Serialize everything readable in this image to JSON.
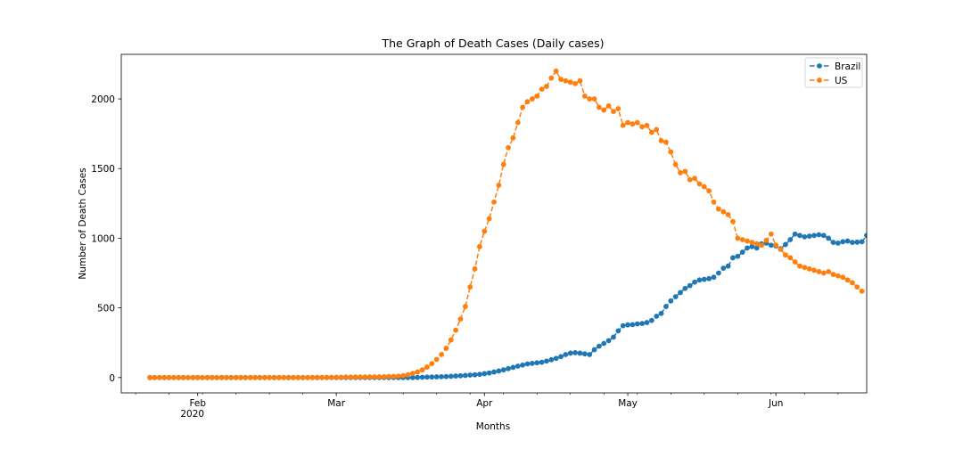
{
  "chart_data": {
    "type": "line",
    "title": "The Graph of Death Cases (Daily cases)",
    "xlabel": "Months",
    "ylabel": "Number of Death Cases",
    "x_start": "2020-01-22",
    "x_end": "2020-06-20",
    "xlim": [
      "2020-01-16",
      "2020-06-20"
    ],
    "ylim": [
      -110,
      2320
    ],
    "yticks": [
      0,
      500,
      1000,
      1500,
      2000
    ],
    "xticks_major": [
      {
        "date": "2020-02-01",
        "label": "Feb",
        "sublabel": "2020"
      },
      {
        "date": "2020-03-01",
        "label": "Mar",
        "sublabel": ""
      },
      {
        "date": "2020-04-01",
        "label": "Apr",
        "sublabel": ""
      },
      {
        "date": "2020-05-01",
        "label": "May",
        "sublabel": ""
      },
      {
        "date": "2020-06-01",
        "label": "Jun",
        "sublabel": ""
      }
    ],
    "legend_position": "top-right",
    "grid": false,
    "series": [
      {
        "name": "Brazil",
        "color": "#1f77b4",
        "style": "dashed-marker",
        "values": [
          0,
          0,
          0,
          0,
          0,
          0,
          0,
          0,
          0,
          0,
          0,
          0,
          0,
          0,
          0,
          0,
          0,
          0,
          0,
          0,
          0,
          0,
          0,
          0,
          0,
          0,
          0,
          0,
          0,
          0,
          0,
          0,
          0,
          0,
          0,
          0,
          0,
          0,
          0,
          0,
          0,
          0,
          0,
          0,
          0,
          0,
          0,
          0,
          0,
          0,
          0,
          0,
          0,
          0,
          0,
          0,
          1,
          2,
          3,
          4,
          5,
          6,
          7,
          9,
          11,
          13,
          15,
          18,
          20,
          23,
          28,
          33,
          40,
          47,
          55,
          64,
          73,
          82,
          90,
          98,
          102,
          106,
          110,
          118,
          128,
          138,
          150,
          165,
          175,
          178,
          175,
          170,
          165,
          200,
          225,
          245,
          265,
          290,
          335,
          372,
          378,
          380,
          385,
          388,
          395,
          410,
          440,
          460,
          510,
          550,
          580,
          610,
          640,
          660,
          685,
          700,
          705,
          710,
          720,
          750,
          785,
          800,
          860,
          870,
          900,
          930,
          940,
          930,
          960,
          965,
          950,
          945,
          925,
          955,
          990,
          1030,
          1020,
          1010,
          1015,
          1020,
          1025,
          1020,
          1000,
          970,
          965,
          975,
          980,
          970,
          972,
          975,
          1020,
          1040
        ]
      },
      {
        "name": "US",
        "color": "#ff7f0e",
        "style": "dashed-marker",
        "values": [
          0,
          0,
          0,
          0,
          0,
          0,
          0,
          0,
          0,
          0,
          0,
          0,
          0,
          0,
          0,
          0,
          0,
          0,
          0,
          0,
          0,
          0,
          0,
          0,
          0,
          0,
          0,
          0,
          0,
          0,
          0,
          0,
          0,
          0,
          0,
          0,
          0,
          1,
          1,
          2,
          2,
          3,
          3,
          4,
          4,
          4,
          5,
          5,
          5,
          6,
          7,
          8,
          10,
          14,
          20,
          30,
          40,
          55,
          75,
          100,
          130,
          165,
          210,
          270,
          340,
          420,
          510,
          650,
          780,
          940,
          1050,
          1140,
          1260,
          1380,
          1530,
          1650,
          1720,
          1830,
          1940,
          1980,
          2000,
          2020,
          2070,
          2090,
          2150,
          2200,
          2140,
          2130,
          2120,
          2110,
          2130,
          2020,
          2000,
          2000,
          1940,
          1920,
          1950,
          1910,
          1930,
          1810,
          1830,
          1820,
          1830,
          1800,
          1810,
          1760,
          1780,
          1700,
          1690,
          1620,
          1530,
          1470,
          1480,
          1420,
          1430,
          1390,
          1370,
          1340,
          1260,
          1210,
          1190,
          1170,
          1120,
          1000,
          990,
          980,
          970,
          960,
          950,
          985,
          1030,
          950,
          920,
          880,
          860,
          830,
          800,
          790,
          780,
          770,
          760,
          750,
          760,
          740,
          730,
          720,
          700,
          680,
          650,
          620
        ]
      }
    ]
  }
}
